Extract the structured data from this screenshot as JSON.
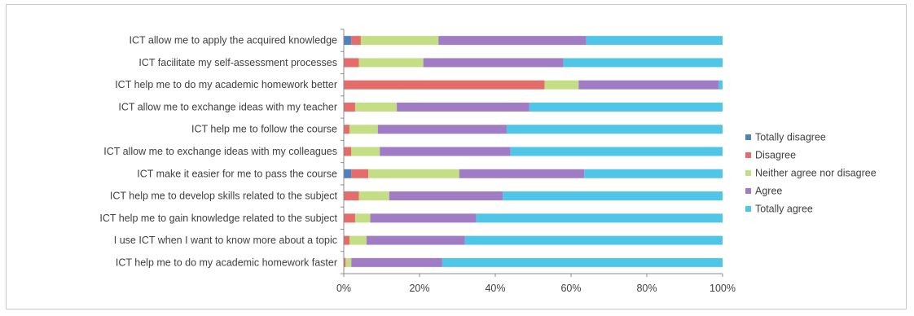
{
  "chart_data": {
    "type": "bar",
    "orientation": "horizontal",
    "stacking": "percent",
    "categories": [
      "ICT allow me to apply the acquired knowledge",
      "ICT facilitate my self-assessment processes",
      "ICT help me to do my academic homework better",
      "ICT allow me to exchange ideas with my teacher",
      "ICT help me to follow the course",
      "ICT allow me to exchange ideas with my colleagues",
      "ICT make it easier for me to pass the course",
      "ICT help me to develop skills related to the subject",
      "ICT help me to gain knowledge related to the subject",
      "I use ICT when I want to know more about a topic",
      "ICT help me to do my academic homework faster"
    ],
    "series": [
      {
        "name": "Totally disagree",
        "color": "#4F81BD",
        "values": [
          2,
          0,
          0,
          0,
          0,
          0,
          2,
          0,
          0,
          0,
          0
        ]
      },
      {
        "name": "Disagree",
        "color": "#E46C6A",
        "values": [
          2.5,
          4,
          53,
          3,
          1.5,
          2,
          4.5,
          4,
          3,
          1.5,
          0.5
        ]
      },
      {
        "name": "Neither agree nor disagree",
        "color": "#C3DE84",
        "values": [
          20.5,
          17,
          9,
          11,
          7.5,
          7.5,
          24,
          8,
          4,
          4.5,
          1.5
        ]
      },
      {
        "name": "Agree",
        "color": "#A07CC5",
        "values": [
          39,
          37,
          37,
          35,
          34,
          34.5,
          33,
          30,
          28,
          26,
          24
        ]
      },
      {
        "name": "Totally agree",
        "color": "#4FC6E8",
        "values": [
          36,
          42,
          1,
          51,
          57,
          56,
          36.5,
          58,
          65,
          68,
          74
        ]
      }
    ],
    "xlim": [
      0,
      100
    ],
    "xticks": [
      "0%",
      "20%",
      "40%",
      "60%",
      "80%",
      "100%"
    ],
    "grid": false,
    "legend_position": "right"
  }
}
